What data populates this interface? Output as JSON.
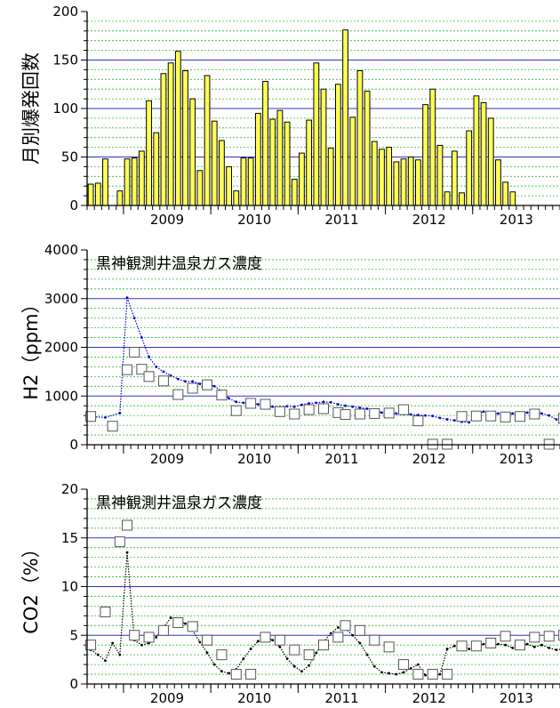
{
  "chart_data": [
    {
      "type": "bar",
      "ylabel": "月別爆発回数",
      "ylim": [
        0,
        200
      ],
      "yticks": [
        "0",
        "50",
        "100",
        "150",
        "200"
      ],
      "x_year_labels": [
        "2009",
        "2010",
        "2011",
        "2012",
        "2013"
      ],
      "x_start": "2008-08",
      "categories": [
        "2008-08",
        "2008-09",
        "2008-10",
        "2008-11",
        "2008-12",
        "2009-01",
        "2009-02",
        "2009-03",
        "2009-04",
        "2009-05",
        "2009-06",
        "2009-07",
        "2009-08",
        "2009-09",
        "2009-10",
        "2009-11",
        "2009-12",
        "2010-01",
        "2010-02",
        "2010-03",
        "2010-04",
        "2010-05",
        "2010-06",
        "2010-07",
        "2010-08",
        "2010-09",
        "2010-10",
        "2010-11",
        "2010-12",
        "2011-01",
        "2011-02",
        "2011-03",
        "2011-04",
        "2011-05",
        "2011-06",
        "2011-07",
        "2011-08",
        "2011-09",
        "2011-10",
        "2011-11",
        "2011-12",
        "2012-01",
        "2012-02",
        "2012-03",
        "2012-04",
        "2012-05",
        "2012-06",
        "2012-07",
        "2012-08",
        "2012-09",
        "2012-10",
        "2012-11",
        "2012-12",
        "2013-01",
        "2013-02",
        "2013-03",
        "2013-04",
        "2013-05",
        "2013-06",
        "2013-07",
        "2013-08",
        "2013-09",
        "2013-10",
        "2013-11",
        "2013-12"
      ],
      "values": [
        22,
        23,
        48,
        0,
        15,
        48,
        49,
        56,
        108,
        75,
        136,
        147,
        159,
        139,
        110,
        36,
        134,
        87,
        67,
        40,
        15,
        49,
        49,
        95,
        128,
        89,
        98,
        86,
        27,
        54,
        88,
        147,
        120,
        59,
        125,
        181,
        91,
        139,
        118,
        66,
        58,
        60,
        45,
        48,
        50,
        47,
        104,
        120,
        62,
        14,
        56,
        13,
        77,
        113,
        106,
        90,
        47,
        24,
        14,
        0,
        0,
        0,
        0,
        0,
        0
      ],
      "grid": true
    },
    {
      "type": "line",
      "title": "黒神観測井温泉ガス濃度",
      "ylabel": "H2（ppm）",
      "ylim": [
        0,
        4000
      ],
      "yticks": [
        "0",
        "1000",
        "2000",
        "3000",
        "4000"
      ],
      "x_year_labels": [
        "2009",
        "2010",
        "2011",
        "2012",
        "2013"
      ],
      "line_color": "#0000cc",
      "series": [
        {
          "kind": "continuous",
          "x": [
            "2008-08",
            "2008-10",
            "2008-12",
            "2009-01",
            "2009-02",
            "2009-03",
            "2009-04",
            "2009-05",
            "2009-06",
            "2009-07",
            "2009-08",
            "2009-09",
            "2009-10",
            "2009-11",
            "2009-12",
            "2010-01",
            "2010-02",
            "2010-03",
            "2010-04",
            "2010-05",
            "2010-06",
            "2010-07",
            "2010-08",
            "2010-09",
            "2010-10",
            "2010-11",
            "2010-12",
            "2011-01",
            "2011-02",
            "2011-03",
            "2011-04",
            "2011-05",
            "2011-06",
            "2011-07",
            "2011-08",
            "2011-09",
            "2011-10",
            "2011-11",
            "2011-12",
            "2012-01",
            "2012-02",
            "2012-03",
            "2012-04",
            "2012-05",
            "2012-06",
            "2012-07",
            "2012-08",
            "2012-09",
            "2012-10",
            "2012-11",
            "2012-12",
            "2013-01",
            "2013-02",
            "2013-03",
            "2013-04",
            "2013-05",
            "2013-06",
            "2013-07",
            "2013-08",
            "2013-09",
            "2013-10",
            "2013-11",
            "2013-12",
            "2014-01"
          ],
          "y": [
            580,
            560,
            650,
            3020,
            2600,
            2200,
            1800,
            1600,
            1500,
            1420,
            1350,
            1300,
            1300,
            1250,
            1260,
            1200,
            1100,
            950,
            880,
            860,
            840,
            830,
            800,
            780,
            770,
            790,
            780,
            820,
            850,
            860,
            880,
            870,
            830,
            800,
            780,
            760,
            740,
            700,
            660,
            650,
            640,
            630,
            620,
            610,
            600,
            590,
            550,
            520,
            500,
            470,
            460,
            620,
            680,
            650,
            640,
            620,
            640,
            650,
            660,
            680,
            640,
            600,
            520,
            460
          ]
        },
        {
          "kind": "sample",
          "marker": "square",
          "x": [
            "2008-08",
            "2008-11",
            "2009-01",
            "2009-02",
            "2009-03",
            "2009-04",
            "2009-06",
            "2009-08",
            "2009-10",
            "2009-12",
            "2010-02",
            "2010-04",
            "2010-06",
            "2010-08",
            "2010-10",
            "2010-12",
            "2011-02",
            "2011-04",
            "2011-06",
            "2011-07",
            "2011-09",
            "2011-11",
            "2012-01",
            "2012-03",
            "2012-05",
            "2012-07",
            "2012-09",
            "2012-11",
            "2013-01",
            "2013-03",
            "2013-05",
            "2013-07",
            "2013-09",
            "2013-11",
            "2014-01"
          ],
          "y": [
            580,
            380,
            1540,
            1900,
            1550,
            1400,
            1310,
            1030,
            1160,
            1230,
            1020,
            700,
            850,
            830,
            680,
            630,
            720,
            740,
            660,
            620,
            630,
            640,
            650,
            720,
            490,
            10,
            10,
            580,
            590,
            590,
            570,
            580,
            630,
            10,
            540
          ]
        }
      ],
      "grid": true
    },
    {
      "type": "scatter",
      "title": "黒神観測井温泉ガス濃度",
      "ylabel": "CO2（%）",
      "ylim": [
        0,
        20
      ],
      "yticks": [
        "0",
        "5",
        "10",
        "15",
        "20"
      ],
      "x_year_labels": [
        "2009",
        "2010",
        "2011",
        "2012",
        "2013"
      ],
      "series": [
        {
          "kind": "continuous",
          "x": [
            "2008-08",
            "2008-09",
            "2008-10",
            "2008-11",
            "2008-12",
            "2009-01",
            "2009-02",
            "2009-03",
            "2009-04",
            "2009-05",
            "2009-06",
            "2009-07",
            "2009-08",
            "2009-09",
            "2009-10",
            "2009-11",
            "2009-12",
            "2010-01",
            "2010-02",
            "2010-03",
            "2010-04",
            "2010-05",
            "2010-06",
            "2010-07",
            "2010-08",
            "2010-09",
            "2010-10",
            "2010-11",
            "2010-12",
            "2011-01",
            "2011-02",
            "2011-03",
            "2011-04",
            "2011-05",
            "2011-06",
            "2011-07",
            "2011-08",
            "2011-09",
            "2011-10",
            "2011-11",
            "2011-12",
            "2012-01",
            "2012-02",
            "2012-03",
            "2012-04",
            "2012-05",
            "2012-06",
            "2012-07",
            "2012-08",
            "2012-09",
            "2012-10",
            "2012-11",
            "2012-12",
            "2013-01",
            "2013-02",
            "2013-03",
            "2013-04",
            "2013-05",
            "2013-06",
            "2013-07",
            "2013-08",
            "2013-09",
            "2013-10",
            "2013-11",
            "2013-12",
            "2014-01"
          ],
          "y": [
            3.5,
            3.0,
            2.4,
            4.2,
            3.0,
            13.5,
            4.5,
            4.0,
            4.2,
            4.8,
            5.8,
            6.8,
            6.5,
            6.2,
            5.5,
            4.3,
            3.2,
            2.0,
            1.3,
            1.1,
            1.5,
            2.6,
            3.6,
            4.4,
            4.8,
            4.5,
            3.8,
            2.6,
            1.8,
            1.3,
            1.9,
            3.2,
            4.3,
            5.2,
            5.8,
            5.7,
            5.0,
            4.2,
            3.0,
            1.8,
            1.2,
            1.1,
            1.0,
            1.2,
            1.6,
            2.0,
            0.9,
            0.8,
            1.0,
            3.6,
            3.9,
            4.1,
            3.6,
            3.9,
            4.1,
            3.9,
            4.1,
            4.0,
            3.7,
            3.9,
            4.1,
            3.8,
            4.0,
            3.7,
            3.5,
            3.6
          ]
        },
        {
          "kind": "sample",
          "marker": "square",
          "x": [
            "2008-08",
            "2008-10",
            "2008-12",
            "2009-01",
            "2009-02",
            "2009-04",
            "2009-06",
            "2009-08",
            "2009-10",
            "2009-12",
            "2010-02",
            "2010-04",
            "2010-06",
            "2010-08",
            "2010-10",
            "2010-12",
            "2011-02",
            "2011-04",
            "2011-06",
            "2011-07",
            "2011-09",
            "2011-11",
            "2012-01",
            "2012-03",
            "2012-05",
            "2012-07",
            "2012-09",
            "2012-11",
            "2013-01",
            "2013-03",
            "2013-05",
            "2013-07",
            "2013-09",
            "2013-11",
            "2014-01"
          ],
          "y": [
            4.0,
            7.4,
            14.6,
            16.3,
            5.0,
            4.8,
            5.5,
            6.3,
            5.9,
            4.5,
            3.0,
            1.0,
            1.0,
            4.8,
            4.5,
            3.5,
            3.0,
            4.0,
            4.8,
            6.0,
            5.5,
            4.5,
            3.8,
            2.0,
            1.0,
            1.0,
            1.0,
            3.9,
            3.9,
            4.2,
            4.9,
            4.0,
            4.8,
            4.9,
            5.0
          ]
        }
      ],
      "grid": true
    }
  ]
}
